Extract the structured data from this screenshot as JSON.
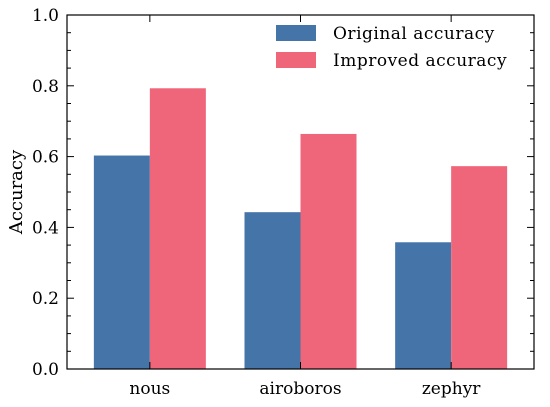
{
  "chart_data": {
    "type": "bar",
    "title": "",
    "xlabel": "",
    "ylabel": "Accuracy",
    "categories": [
      "nous",
      "airoboros",
      "zephyr"
    ],
    "series": [
      {
        "name": "Original accuracy",
        "values": [
          0.603,
          0.443,
          0.358
        ],
        "color": "#4575a8"
      },
      {
        "name": "Improved accuracy",
        "values": [
          0.793,
          0.664,
          0.573
        ],
        "color": "#ef6579"
      }
    ],
    "ylim": [
      0.0,
      1.0
    ],
    "yticks": [
      "0.0",
      "0.2",
      "0.4",
      "0.6",
      "0.8",
      "1.0"
    ],
    "grid": false,
    "legend_position": "top-right"
  }
}
